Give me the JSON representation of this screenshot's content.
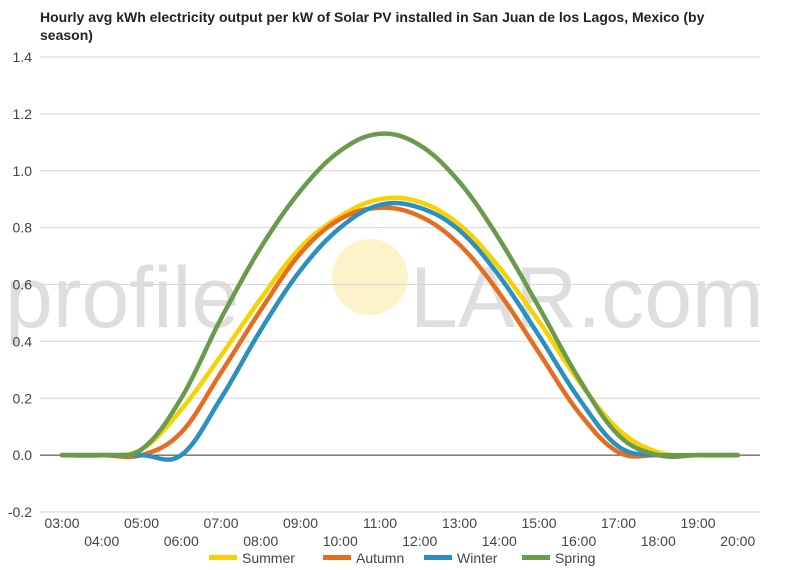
{
  "chart_data": {
    "type": "line",
    "title": "Hourly avg kWh electricity output per kW of Solar PV installed in San Juan de los Lagos, Mexico (by season)",
    "xlabel": "",
    "ylabel": "",
    "ylim": [
      -0.2,
      1.4
    ],
    "yticks": [
      "-0.2",
      "0.0",
      "0.2",
      "0.4",
      "0.6",
      "0.8",
      "1.0",
      "1.2",
      "1.4"
    ],
    "xtick_labels": [
      "03:00",
      "04:00",
      "05:00",
      "06:00",
      "07:00",
      "08:00",
      "09:00",
      "10:00",
      "11:00",
      "12:00",
      "13:00",
      "14:00",
      "15:00",
      "16:00",
      "17:00",
      "18:00",
      "19:00",
      "20:00"
    ],
    "x": [
      "03:00",
      "04:00",
      "05:00",
      "06:00",
      "07:00",
      "08:00",
      "09:00",
      "10:00",
      "11:00",
      "12:00",
      "13:00",
      "14:00",
      "15:00",
      "16:00",
      "17:00",
      "18:00",
      "19:00",
      "20:00"
    ],
    "grid": true,
    "legend_position": "bottom",
    "series": [
      {
        "name": "Summer",
        "color": "#f5d200",
        "values": [
          0.0,
          0.0,
          0.02,
          0.16,
          0.35,
          0.55,
          0.73,
          0.84,
          0.9,
          0.89,
          0.81,
          0.66,
          0.47,
          0.26,
          0.09,
          0.01,
          0.0,
          0.0
        ]
      },
      {
        "name": "Autumn",
        "color": "#e66d1f",
        "values": [
          0.0,
          0.0,
          0.0,
          0.08,
          0.29,
          0.51,
          0.71,
          0.83,
          0.87,
          0.84,
          0.74,
          0.57,
          0.36,
          0.15,
          0.01,
          0.0,
          0.0,
          0.0
        ]
      },
      {
        "name": "Winter",
        "color": "#2b8fbf",
        "values": [
          0.0,
          0.0,
          0.0,
          0.0,
          0.2,
          0.44,
          0.65,
          0.8,
          0.88,
          0.87,
          0.79,
          0.63,
          0.42,
          0.2,
          0.03,
          0.0,
          0.0,
          0.0
        ]
      },
      {
        "name": "Spring",
        "color": "#6b9a4d",
        "values": [
          0.0,
          0.0,
          0.02,
          0.2,
          0.48,
          0.73,
          0.93,
          1.07,
          1.13,
          1.09,
          0.96,
          0.76,
          0.52,
          0.27,
          0.07,
          0.0,
          0.0,
          0.0
        ]
      }
    ]
  },
  "watermark": {
    "left": "profile",
    "right": "LAR.com"
  }
}
